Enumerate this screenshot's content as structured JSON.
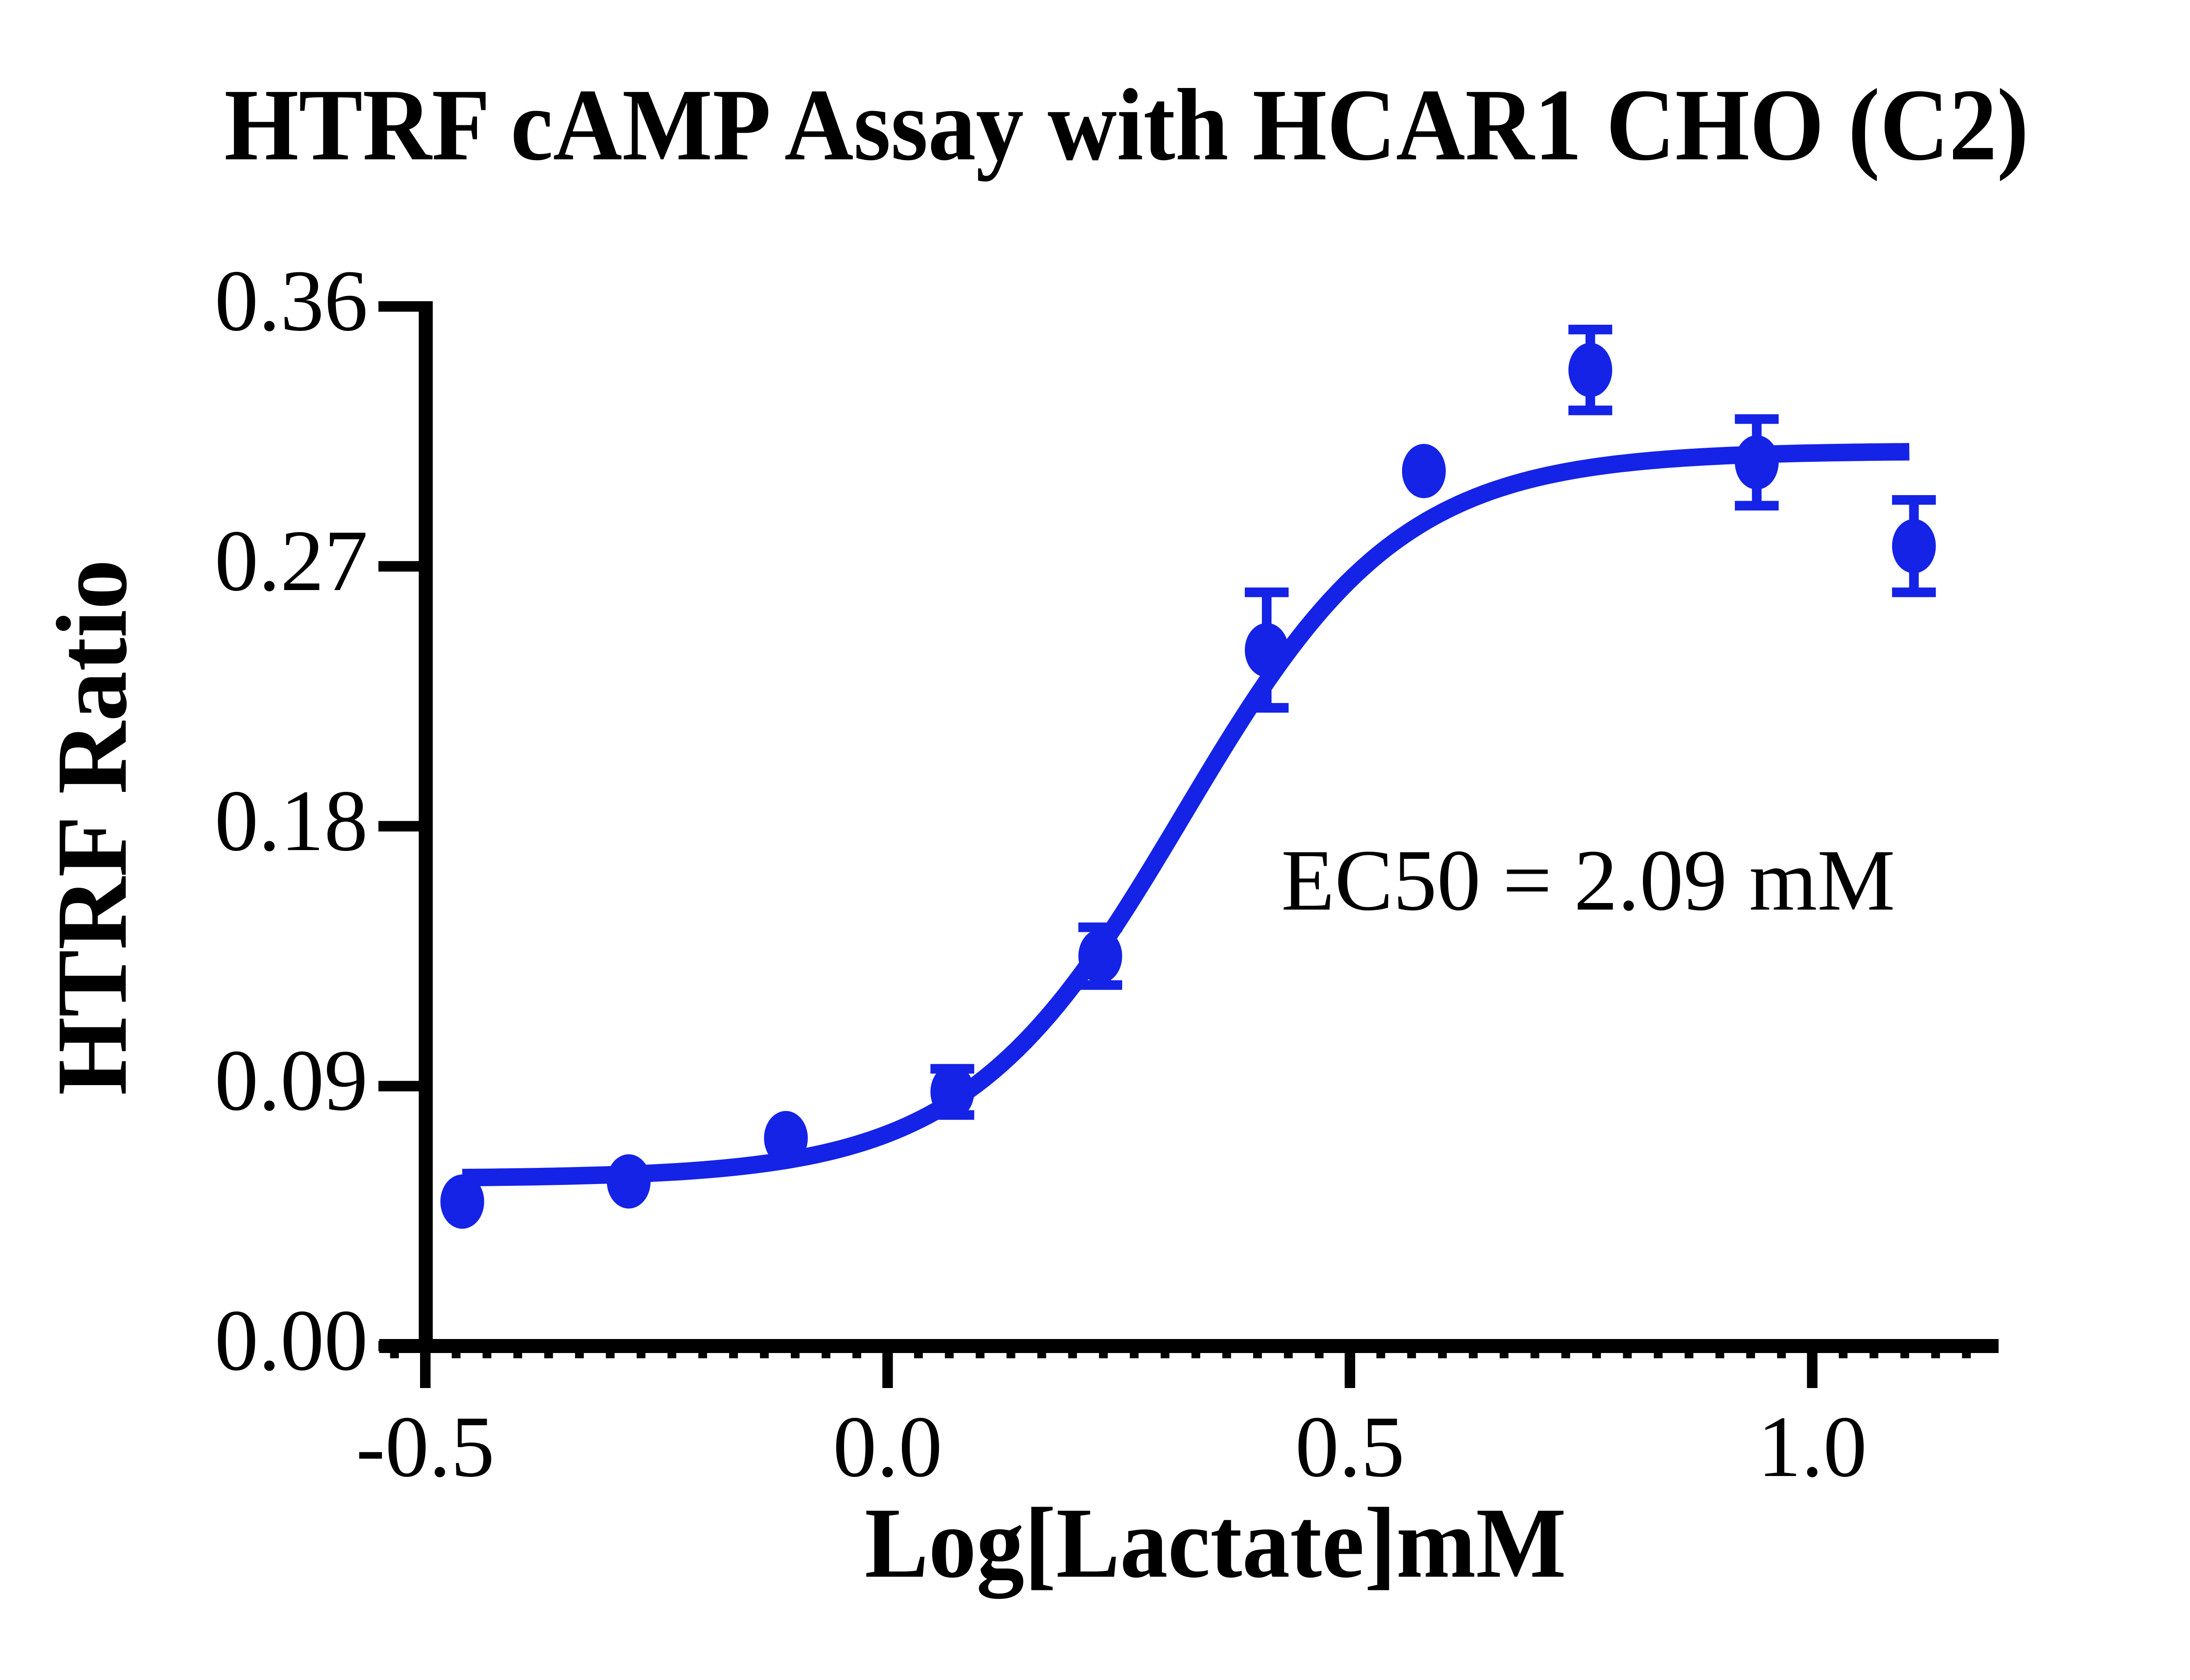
{
  "chart_data": {
    "type": "scatter",
    "title": "HTRF cAMP Assay with HCAR1 CHO (C2)",
    "xlabel": "Log[Lactate]mM",
    "ylabel": "HTRF Ratio",
    "annotation": "EC50 = 2.09 mM",
    "xlim": [
      -0.55,
      1.2
    ],
    "ylim": [
      0.0,
      0.36
    ],
    "x_ticks": [
      -0.5,
      0.0,
      0.5,
      1.0
    ],
    "x_tick_labels": [
      "-0.5",
      "0.0",
      "0.5",
      "1.0"
    ],
    "y_ticks": [
      0.36,
      0.27,
      0.18,
      0.09,
      0.0
    ],
    "y_tick_labels": [
      "0.36",
      "0.27",
      "0.18",
      "0.09",
      "0.00"
    ],
    "grid": false,
    "legend": "none",
    "series": [
      {
        "name": "HCAR1 CHO (C2)",
        "marker": "circle",
        "color": "#1523e6",
        "points": [
          {
            "x": -0.46,
            "y": 0.05,
            "err": null
          },
          {
            "x": -0.28,
            "y": 0.057,
            "err": null
          },
          {
            "x": -0.11,
            "y": 0.072,
            "err": null
          },
          {
            "x": 0.07,
            "y": 0.088,
            "err": 0.008
          },
          {
            "x": 0.23,
            "y": 0.135,
            "err": 0.01
          },
          {
            "x": 0.41,
            "y": 0.241,
            "err": 0.02
          },
          {
            "x": 0.58,
            "y": 0.303,
            "err": null
          },
          {
            "x": 0.76,
            "y": 0.338,
            "err": 0.014
          },
          {
            "x": 0.94,
            "y": 0.306,
            "err": 0.015
          },
          {
            "x": 1.11,
            "y": 0.277,
            "err": 0.016
          }
        ]
      }
    ],
    "fit_curve": {
      "model": "sigmoid-4PL",
      "bottom": 0.058,
      "top": 0.31,
      "log_ec50": 0.32,
      "hill": 3.7,
      "x_start": -0.46,
      "x_end": 1.105,
      "color": "#1523e6"
    },
    "colors": {
      "series": "#1523e6",
      "axis": "#000000",
      "text": "#000000",
      "background": "#ffffff"
    }
  }
}
